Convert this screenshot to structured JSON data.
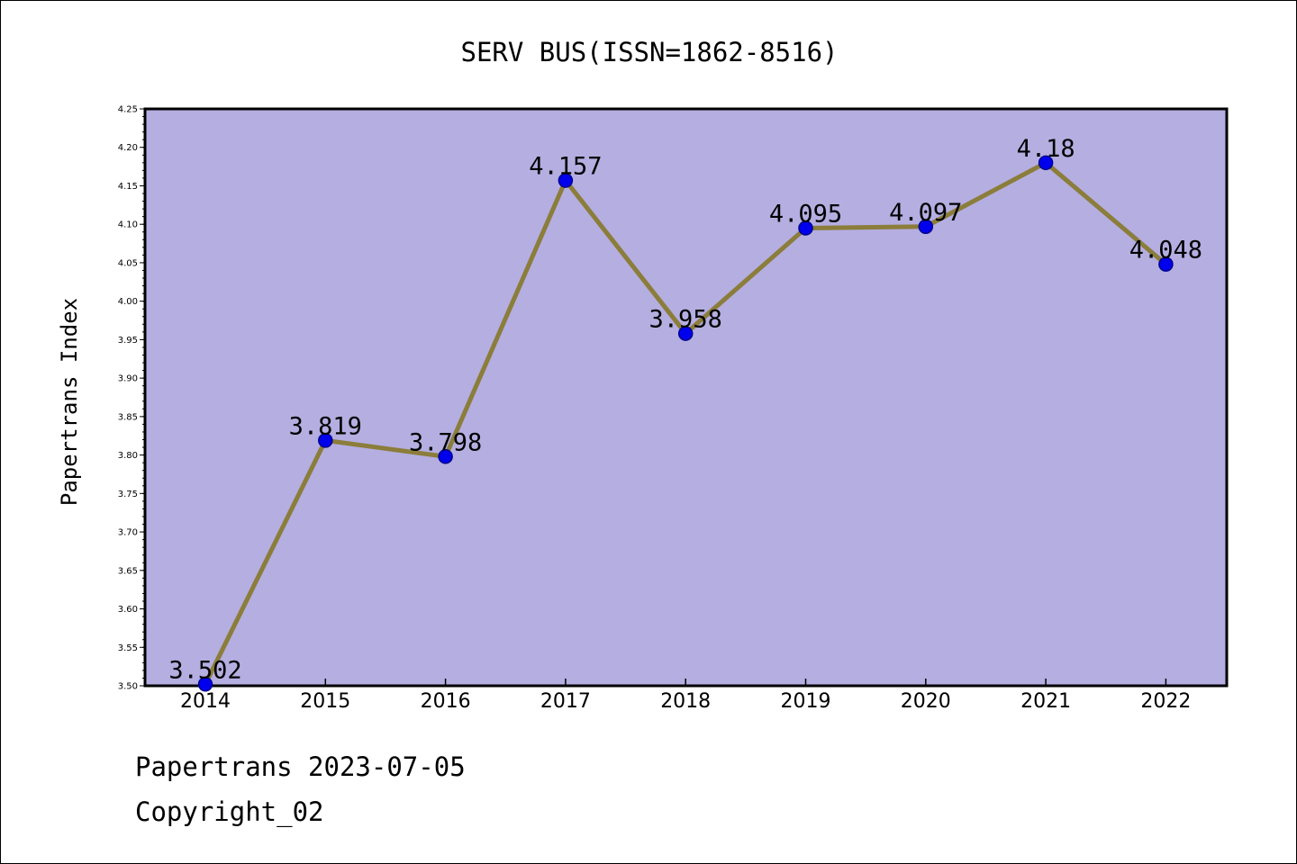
{
  "chart_data": {
    "type": "line",
    "title": "SERV BUS(ISSN=1862-8516)",
    "xlabel": "",
    "ylabel": "Papertrans Index",
    "categories": [
      "2014",
      "2015",
      "2016",
      "2017",
      "2018",
      "2019",
      "2020",
      "2021",
      "2022"
    ],
    "values": [
      3.502,
      3.819,
      3.798,
      4.157,
      3.958,
      4.095,
      4.097,
      4.18,
      4.048
    ],
    "data_labels": [
      "3.502",
      "3.819",
      "3.798",
      "4.157",
      "3.958",
      "4.095",
      "4.097",
      "4.18",
      "4.048"
    ],
    "ylim": [
      3.5,
      4.25
    ],
    "yticks": [
      3.5,
      3.55,
      3.6,
      3.65,
      3.7,
      3.75,
      3.8,
      3.85,
      3.9,
      3.95,
      4.0,
      4.05,
      4.1,
      4.15,
      4.2,
      4.25
    ],
    "ytick_labels": [
      "3.50",
      "3.55",
      "3.60",
      "3.65",
      "3.70",
      "3.75",
      "3.80",
      "3.85",
      "3.90",
      "3.95",
      "4.00",
      "4.05",
      "4.10",
      "4.15",
      "4.20",
      "4.25"
    ],
    "grid": false,
    "legend": "none",
    "colors": {
      "plot_background": "#b4aee1",
      "line": "#8b7d3a",
      "marker_fill": "#0000ee",
      "marker_edge": "#00008b",
      "axes": "#000000"
    }
  },
  "footer": {
    "credit": "Papertrans 2023-07-05",
    "copyright": "Copyright_02"
  }
}
